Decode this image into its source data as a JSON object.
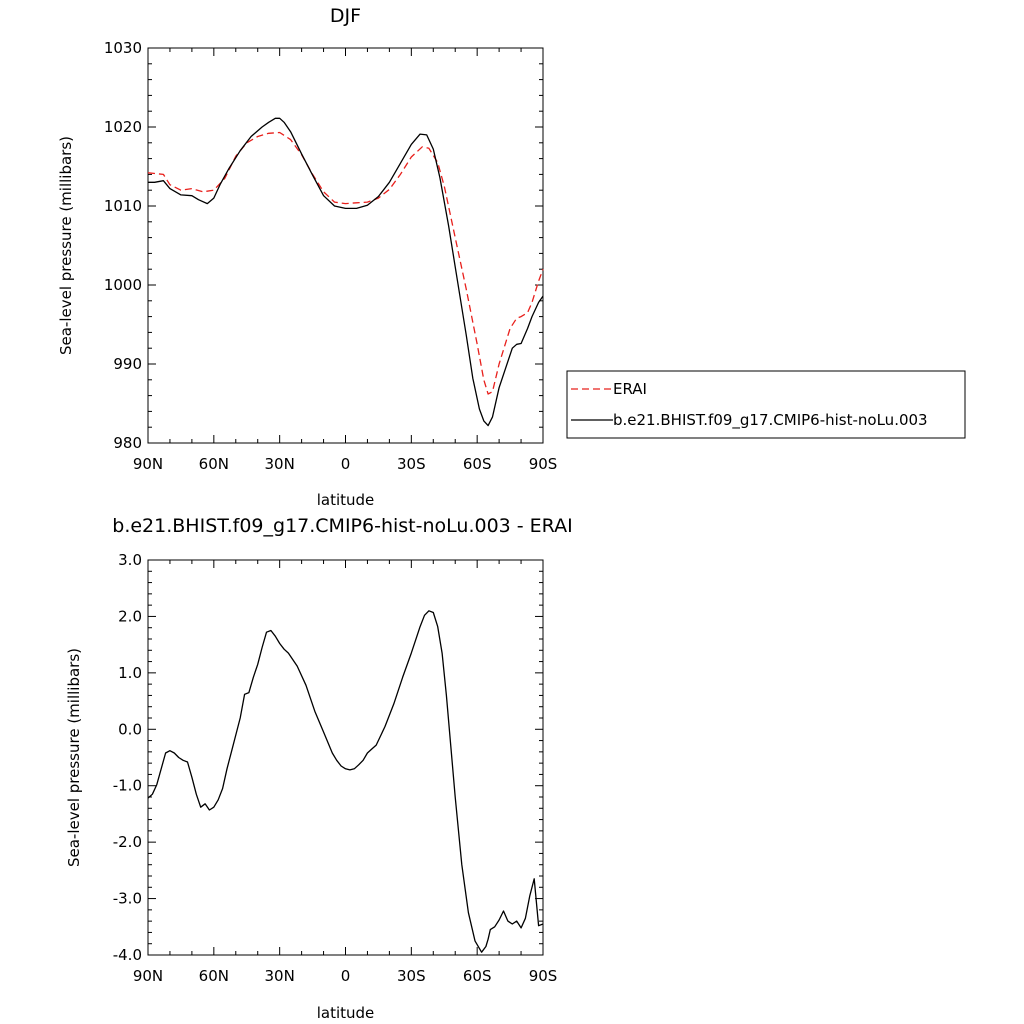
{
  "chart_data": [
    {
      "type": "line",
      "title": "DJF",
      "xlabel": "latitude",
      "ylabel": "Sea-level pressure (millibars)",
      "x_tick_labels": [
        "90N",
        "60N",
        "30N",
        "0",
        "30S",
        "60S",
        "90S"
      ],
      "x_tick_values": [
        90,
        60,
        30,
        0,
        -30,
        -60,
        -90
      ],
      "y_tick_labels": [
        "980",
        "990",
        "1000",
        "1010",
        "1020",
        "1030"
      ],
      "y_tick_values": [
        980,
        990,
        1000,
        1010,
        1020,
        1030
      ],
      "xlim": [
        90,
        -90
      ],
      "ylim": [
        980,
        1030
      ],
      "legend_position": "right",
      "series": [
        {
          "name": "ERAI",
          "color": "#e8201c",
          "style": "dashed",
          "x": [
            90,
            83,
            80,
            75,
            70,
            65,
            60,
            55,
            50,
            45,
            40,
            35,
            30,
            25,
            20,
            15,
            10,
            5,
            0,
            -5,
            -10,
            -15,
            -20,
            -25,
            -30,
            -35,
            -38,
            -42,
            -45,
            -50,
            -55,
            -60,
            -63,
            -65,
            -67,
            -70,
            -75,
            -78,
            -80,
            -83,
            -85,
            -88,
            -90
          ],
          "y": [
            1014.2,
            1014.0,
            1012.7,
            1012.0,
            1012.2,
            1011.8,
            1012.0,
            1013.5,
            1016.3,
            1018.0,
            1018.8,
            1019.2,
            1019.3,
            1018.4,
            1016.5,
            1014.0,
            1011.8,
            1010.5,
            1010.3,
            1010.4,
            1010.5,
            1011.0,
            1012.1,
            1014.0,
            1016.2,
            1017.5,
            1017.3,
            1015.5,
            1012.5,
            1006.0,
            999.5,
            992.5,
            988.0,
            986.2,
            986.5,
            990.0,
            994.5,
            995.8,
            996.0,
            996.5,
            997.8,
            1000.5,
            1002.0
          ]
        },
        {
          "name": "b.e21.BHIST.f09_g17.CMIP6-hist-noLu.003",
          "color": "#000000",
          "style": "solid",
          "x": [
            90,
            87,
            83,
            80,
            75,
            70,
            67,
            63,
            60,
            57,
            53,
            48,
            43,
            38,
            35,
            32,
            30,
            28,
            25,
            20,
            15,
            10,
            5,
            0,
            -5,
            -10,
            -15,
            -20,
            -25,
            -30,
            -34,
            -37,
            -40,
            -43,
            -47,
            -50,
            -55,
            -58,
            -61,
            -63,
            -65,
            -67,
            -70,
            -73,
            -76,
            -78,
            -80,
            -83,
            -85,
            -88,
            -90
          ],
          "y": [
            1013.0,
            1013.0,
            1013.2,
            1012.2,
            1011.4,
            1011.3,
            1010.8,
            1010.3,
            1011.0,
            1012.8,
            1014.8,
            1017.0,
            1018.8,
            1020.0,
            1020.6,
            1021.1,
            1021.1,
            1020.6,
            1019.4,
            1016.6,
            1013.9,
            1011.3,
            1010.0,
            1009.7,
            1009.7,
            1010.1,
            1011.2,
            1013.0,
            1015.4,
            1017.8,
            1019.1,
            1019.0,
            1017.2,
            1013.6,
            1007.5,
            1002.3,
            993.7,
            988.2,
            984.3,
            982.8,
            982.2,
            983.3,
            987.0,
            989.5,
            992.0,
            992.5,
            992.6,
            994.5,
            996.0,
            997.8,
            998.6
          ]
        }
      ]
    },
    {
      "type": "line",
      "title": "b.e21.BHIST.f09_g17.CMIP6-hist-noLu.003 - ERAI",
      "xlabel": "latitude",
      "ylabel": "Sea-level pressure (millibars)",
      "x_tick_labels": [
        "90N",
        "60N",
        "30N",
        "0",
        "30S",
        "60S",
        "90S"
      ],
      "x_tick_values": [
        90,
        60,
        30,
        0,
        -30,
        -60,
        -90
      ],
      "y_tick_labels": [
        "-4.0",
        "-3.0",
        "-2.0",
        "-1.0",
        "0.0",
        "1.0",
        "2.0",
        "3.0"
      ],
      "y_tick_values": [
        -4,
        -3,
        -2,
        -1,
        0,
        1,
        2,
        3
      ],
      "xlim": [
        90,
        -90
      ],
      "ylim": [
        -4,
        3
      ],
      "series": [
        {
          "color": "#000000",
          "style": "solid",
          "x": [
            90,
            88,
            86,
            82,
            80,
            78,
            76,
            74,
            72,
            70,
            68,
            66,
            64,
            62,
            60,
            58,
            56,
            54,
            52,
            48,
            46,
            44,
            42,
            40,
            38,
            36,
            34,
            32,
            30,
            28,
            26,
            22,
            18,
            14,
            10,
            6,
            4,
            2,
            0,
            -2,
            -4,
            -6,
            -8,
            -10,
            -12,
            -14,
            -18,
            -22,
            -26,
            -30,
            -34,
            -36,
            -38,
            -40,
            -42,
            -44,
            -46,
            -48,
            -50,
            -53,
            -56,
            -59,
            -62,
            -64,
            -65,
            -66,
            -68,
            -70,
            -72,
            -74,
            -76,
            -78,
            -80,
            -82,
            -84,
            -86,
            -88,
            -90
          ],
          "y": [
            -1.22,
            -1.15,
            -0.98,
            -0.42,
            -0.38,
            -0.42,
            -0.5,
            -0.55,
            -0.58,
            -0.85,
            -1.15,
            -1.38,
            -1.32,
            -1.43,
            -1.38,
            -1.25,
            -1.05,
            -0.7,
            -0.4,
            0.2,
            0.62,
            0.65,
            0.92,
            1.15,
            1.45,
            1.72,
            1.75,
            1.65,
            1.52,
            1.42,
            1.35,
            1.12,
            0.78,
            0.32,
            -0.05,
            -0.42,
            -0.55,
            -0.65,
            -0.7,
            -0.72,
            -0.7,
            -0.63,
            -0.55,
            -0.42,
            -0.35,
            -0.28,
            0.05,
            0.45,
            0.92,
            1.35,
            1.82,
            2.02,
            2.1,
            2.07,
            1.82,
            1.35,
            0.6,
            -0.3,
            -1.2,
            -2.4,
            -3.25,
            -3.75,
            -3.95,
            -3.85,
            -3.72,
            -3.55,
            -3.5,
            -3.38,
            -3.22,
            -3.4,
            -3.45,
            -3.4,
            -3.52,
            -3.35,
            -2.95,
            -2.65,
            -3.48,
            -3.45
          ]
        }
      ]
    }
  ]
}
